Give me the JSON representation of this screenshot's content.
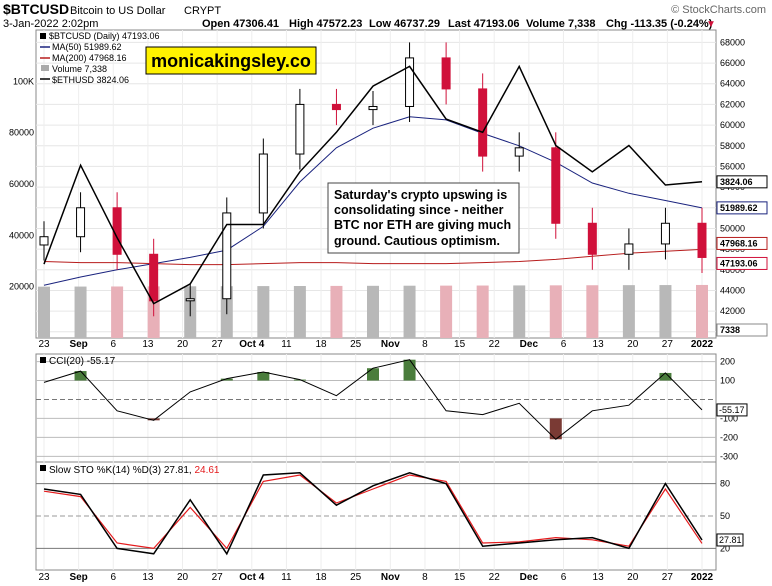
{
  "header": {
    "symbol": "$BTCUSD",
    "name": "Bitcoin to US Dollar",
    "exchange": "CRYPT",
    "watermark": "© StockCharts.com",
    "date": "3-Jan-2022 2:02pm",
    "open": "Open 47306.41",
    "high": "High 47572.23",
    "low": "Low 46737.29",
    "last": "Last 47193.06",
    "volume": "Volume 7,338",
    "change": "Chg -113.35 (-0.24%)",
    "down_marker": "▼"
  },
  "legend": {
    "price": "$BTCUSD (Daily) 47193.06",
    "ma50": "MA(50) 51989.62",
    "ma200": "MA(200) 47968.16",
    "volume": "Volume 7,338",
    "eth": "$ETHUSD 3824.06"
  },
  "banner": "monicakingsley.co",
  "annotation": [
    "Saturday's crypto upswing is",
    "consolidating since - neither",
    "BTC nor ETH are giving much",
    "ground. Cautious optimism."
  ],
  "cci_legend": "CCI(20) -55.17",
  "sto_legend": {
    "prefix": "Slow STO %K(14) %D(3)",
    "k": "27.81",
    "d": "24.61"
  },
  "colors": {
    "up": "#000000",
    "down": "#d0103a",
    "ma50": "#1a237e",
    "ma200": "#b71c1c",
    "vol_up": "#b8b8b8",
    "vol_down": "#e8b0b8",
    "cci_pos": "#4a7d3c",
    "cci_neg": "#7a3a34",
    "banner_bg": "#fff200",
    "k_line": "#000000",
    "d_line": "#e41a1c"
  },
  "chart_data": [
    {
      "type": "candlestick",
      "name": "$BTCUSD (Daily)",
      "price_axis": [
        "68000",
        "66000",
        "64000",
        "62000",
        "60000",
        "58000",
        "56000",
        "54000",
        "52000",
        "50000",
        "48000",
        "46000",
        "44000",
        "42000",
        "40000"
      ],
      "ylim": [
        39400,
        69200
      ],
      "volume_axis": [
        "100K",
        "80000",
        "60000",
        "40000",
        "20000"
      ],
      "volume_ylim": [
        0,
        120000
      ],
      "last_labels": {
        "eth": "3824.06",
        "ma50": "51989.62",
        "ma200": "47968.16",
        "last": "47193.06",
        "volume": "7338"
      },
      "x_labels": [
        "23",
        "Sep",
        "6",
        "13",
        "20",
        "27",
        "Oct 4",
        "11",
        "18",
        "25",
        "Nov",
        "8",
        "15",
        "22",
        "Dec",
        "6",
        "13",
        "20",
        "27",
        "2022"
      ],
      "dates": [
        "Aug 23",
        "Sep 6",
        "Sep 13",
        "Sep 20",
        "Sep 27",
        "Oct 4",
        "Oct 11",
        "Oct 18",
        "Oct 25",
        "Nov 1",
        "Nov 8",
        "Nov 15",
        "Nov 22",
        "Nov 29",
        "Dec 6",
        "Dec 13",
        "Dec 20",
        "Dec 27",
        "Jan 3"
      ],
      "close": [
        49200,
        52000,
        47500,
        43000,
        43200,
        51500,
        57200,
        62000,
        61500,
        61800,
        66500,
        63500,
        57000,
        57800,
        50500,
        47500,
        48500,
        50500,
        47193
      ],
      "ma50": [
        44500,
        45300,
        46000,
        46600,
        47200,
        47900,
        50200,
        54500,
        57800,
        59700,
        60800,
        60500,
        59200,
        58000,
        56400,
        54400,
        53400,
        52700,
        51990
      ],
      "ma200": [
        46800,
        46700,
        46700,
        46600,
        46500,
        46500,
        46600,
        46700,
        46700,
        46600,
        46600,
        46600,
        46700,
        46800,
        47000,
        47300,
        47600,
        47800,
        47968
      ],
      "eth_usd": [
        3200,
        3950,
        3400,
        2900,
        3050,
        3500,
        3500,
        3900,
        4200,
        4550,
        4700,
        4300,
        4200,
        4700,
        4100,
        3900,
        4100,
        3800,
        3824
      ]
    },
    {
      "type": "line",
      "name": "CCI(20)",
      "axis": [
        "200",
        "100",
        "-100",
        "-200",
        "-300"
      ],
      "ylim": [
        -330,
        240
      ],
      "last": "-55.17",
      "values": [
        90,
        150,
        -60,
        -110,
        40,
        110,
        145,
        105,
        20,
        165,
        210,
        -60,
        -80,
        -20,
        -210,
        -60,
        -30,
        140,
        -55.17
      ]
    },
    {
      "type": "line",
      "name": "Slow STO",
      "axis": [
        "80",
        "50",
        "20"
      ],
      "ylim": [
        0,
        100
      ],
      "last": "27.81",
      "k": [
        75,
        70,
        20,
        15,
        65,
        15,
        88,
        90,
        60,
        78,
        90,
        80,
        22,
        25,
        28,
        30,
        20,
        80,
        27.81
      ],
      "d": [
        73,
        68,
        25,
        20,
        58,
        20,
        82,
        88,
        62,
        75,
        88,
        82,
        25,
        26,
        30,
        28,
        22,
        75,
        24.61
      ]
    }
  ]
}
